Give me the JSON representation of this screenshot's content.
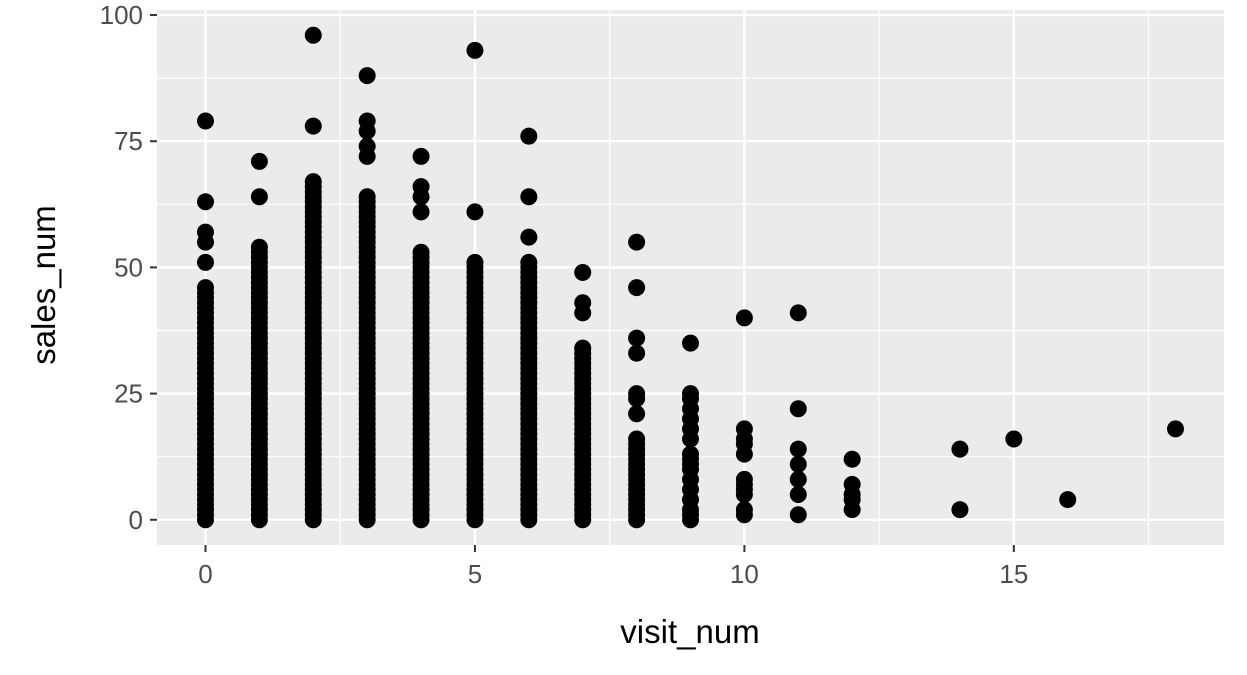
{
  "chart_data": {
    "type": "scatter",
    "title": "",
    "xlabel": "visit_num",
    "ylabel": "sales_num",
    "xlim": [
      -0.9,
      18.9
    ],
    "ylim": [
      -5,
      101
    ],
    "x_ticks": [
      0,
      5,
      10,
      15
    ],
    "x_tick_labels": [
      "0",
      "5",
      "10",
      "15"
    ],
    "y_ticks": [
      0,
      25,
      50,
      75,
      100
    ],
    "y_tick_labels": [
      "0",
      "25",
      "50",
      "75",
      "100"
    ],
    "grid": true,
    "legend": "none",
    "columns": [
      {
        "x": 0,
        "dense_max": 46,
        "outliers": [
          51,
          55,
          57,
          63,
          79
        ]
      },
      {
        "x": 1,
        "dense_max": 54,
        "outliers": [
          64,
          71
        ]
      },
      {
        "x": 2,
        "dense_max": 67,
        "outliers": [
          78,
          96
        ]
      },
      {
        "x": 3,
        "dense_max": 64,
        "outliers": [
          72,
          74,
          77,
          79,
          88
        ]
      },
      {
        "x": 4,
        "dense_max": 53,
        "outliers": [
          61,
          64,
          66,
          72
        ]
      },
      {
        "x": 5,
        "dense_max": 51,
        "outliers": [
          61,
          93
        ]
      },
      {
        "x": 6,
        "dense_max": 51,
        "outliers": [
          56,
          64,
          76
        ]
      },
      {
        "x": 7,
        "dense_max": 34,
        "outliers": [
          41,
          43,
          49
        ]
      },
      {
        "x": 8,
        "dense_max": 16,
        "outliers": [
          21,
          24,
          25,
          33,
          36,
          46,
          55
        ]
      },
      {
        "x": 9,
        "dense_max": 0,
        "outliers": [
          0,
          1,
          2,
          4,
          6,
          8,
          10,
          11,
          12,
          13,
          16,
          18,
          20,
          22,
          24,
          25,
          35
        ]
      },
      {
        "x": 10,
        "dense_max": 0,
        "outliers": [
          1,
          2,
          5,
          6,
          7,
          8,
          13,
          15,
          16,
          18,
          40
        ]
      },
      {
        "x": 11,
        "dense_max": 0,
        "outliers": [
          1,
          5,
          8,
          11,
          14,
          22,
          41
        ]
      },
      {
        "x": 12,
        "dense_max": 0,
        "outliers": [
          2,
          4,
          5,
          7,
          12
        ]
      },
      {
        "x": 14,
        "dense_max": 0,
        "outliers": [
          2,
          14
        ]
      },
      {
        "x": 15,
        "dense_max": 0,
        "outliers": [
          16
        ]
      },
      {
        "x": 16,
        "dense_max": 0,
        "outliers": [
          4
        ]
      },
      {
        "x": 18,
        "dense_max": 0,
        "outliers": [
          18
        ]
      }
    ],
    "colors": {
      "panel": "#ebebeb",
      "grid_major": "#ffffff",
      "point": "#000000",
      "tick_text": "#4d4d4d",
      "tick_mark": "#333333"
    }
  }
}
